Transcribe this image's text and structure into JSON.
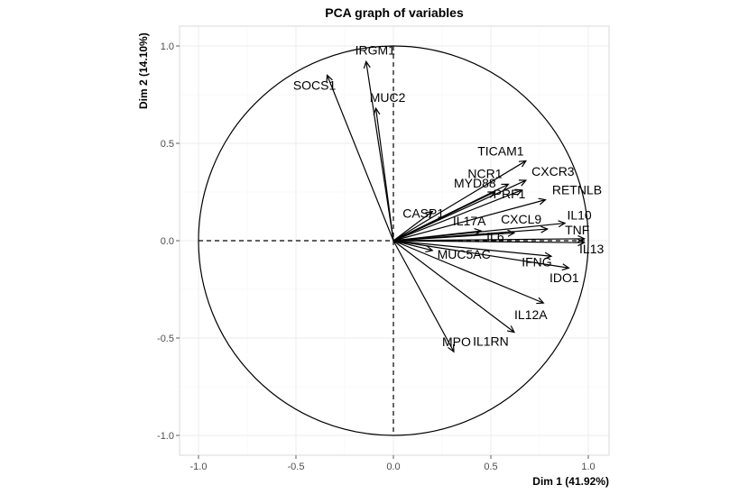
{
  "chart_data": {
    "type": "scatter",
    "subtype": "pca-correlation-circle",
    "title": "PCA graph of variables",
    "xlabel": "Dim 1 (41.92%)",
    "ylabel": "Dim 2 (14.10%)",
    "xlim": [
      -1.0,
      1.0
    ],
    "ylim": [
      -1.0,
      1.0
    ],
    "x_ticks": [
      -1.0,
      -0.5,
      0.0,
      0.5,
      1.0
    ],
    "y_ticks": [
      -1.0,
      -0.5,
      0.0,
      0.5,
      1.0
    ],
    "x_tick_labels": [
      "-1.0",
      "-0.5",
      "0.0",
      "0.5",
      "1.0"
    ],
    "y_tick_labels": [
      "-1.0",
      "-0.5",
      "0.0",
      "0.5",
      "1.0"
    ],
    "grid": true,
    "unit_circle": true,
    "variables": [
      {
        "name": "IRGM1",
        "x": -0.14,
        "y": 0.92
      },
      {
        "name": "SOCS1",
        "x": -0.34,
        "y": 0.85
      },
      {
        "name": "MUC2",
        "x": -0.09,
        "y": 0.68
      },
      {
        "name": "TICAM1",
        "x": 0.68,
        "y": 0.41
      },
      {
        "name": "CXCR3",
        "x": 0.68,
        "y": 0.31
      },
      {
        "name": "NCR1",
        "x": 0.59,
        "y": 0.29
      },
      {
        "name": "MYD88",
        "x": 0.52,
        "y": 0.25
      },
      {
        "name": "PRF1",
        "x": 0.66,
        "y": 0.26
      },
      {
        "name": "RETNLB",
        "x": 0.78,
        "y": 0.21
      },
      {
        "name": "CASP1",
        "x": 0.2,
        "y": 0.15
      },
      {
        "name": "IL10",
        "x": 0.88,
        "y": 0.09
      },
      {
        "name": "IL17A",
        "x": 0.45,
        "y": 0.05
      },
      {
        "name": "CXCL9",
        "x": 0.79,
        "y": 0.06
      },
      {
        "name": "TNF",
        "x": 0.98,
        "y": 0.01
      },
      {
        "name": "IL6",
        "x": 0.62,
        "y": 0.04
      },
      {
        "name": "MUC5AC",
        "x": 0.2,
        "y": -0.05
      },
      {
        "name": "IL13",
        "x": 0.98,
        "y": -0.01
      },
      {
        "name": "IFNG",
        "x": 0.81,
        "y": -0.08
      },
      {
        "name": "IDO1",
        "x": 0.9,
        "y": -0.14
      },
      {
        "name": "IL12A",
        "x": 0.77,
        "y": -0.32
      },
      {
        "name": "IL1RN",
        "x": 0.62,
        "y": -0.47
      },
      {
        "name": "MPO",
        "x": 0.31,
        "y": -0.57
      }
    ]
  }
}
